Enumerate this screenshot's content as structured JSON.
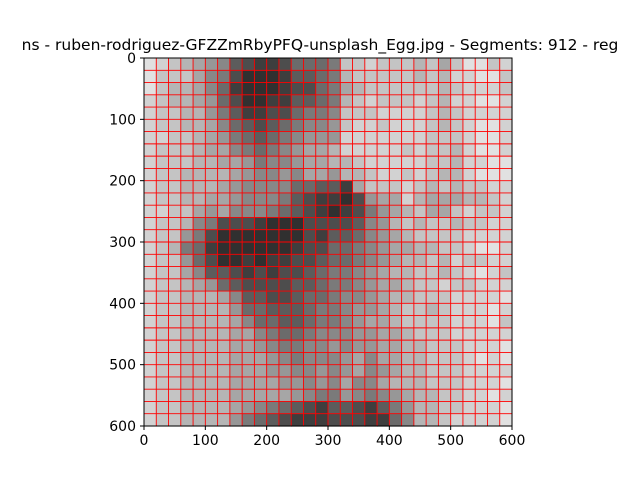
{
  "figure": {
    "title": "ns - ruben-rodriguez-GFZZmRbyPFQ-unsplash_Egg.jpg - Segments: 912 - reg"
  },
  "chart_data": {
    "type": "heatmap",
    "title": "ns - ruben-rodriguez-GFZZmRbyPFQ-unsplash_Egg.jpg - Segments: 912 - reg",
    "xlabel": "",
    "ylabel": "",
    "xlim": [
      0,
      600
    ],
    "ylim": [
      600,
      0
    ],
    "y_axis_inverted": true,
    "x_ticks": [
      0,
      100,
      200,
      300,
      400,
      500,
      600
    ],
    "y_ticks": [
      0,
      100,
      200,
      300,
      400,
      500,
      600
    ],
    "grid": false,
    "colormap": "gray",
    "grid_lines_color": "#ff0000",
    "cols": 30,
    "rows": 30,
    "cells": [
      "edcba98543346667ccdcccbcaceecd",
      "eccca87422235567bcccccbcbddeec",
      "ecbba86322234467abccccccbcdddc",
      "dcbba96422335567bcdcccdcbddeed",
      "dccbb97533446778cccddddcbcdddd",
      "dccbba8654567889cddcdddcbcdeed",
      "ddccba9765678999dddddddcccdeed",
      "dcccbaa876789aabdddddcdccbdeed",
      "dcccbbaa97889aabbcdddddccbddee",
      "dccbbbba98898aa9bbcddcdcbbdeee",
      "dccbbba9888866553acccdcbcbccdd",
      "dccbbaa988875433249aadbaaabbcd",
      "ddcca9a8887654323479abcaacdccd",
      "dccb8744432224444589bcbccbccdd",
      "dcc97422222224355689abccccdddd",
      "dcb76322222234466789aabbccdeed",
      "dcc96422323344566789abbcbdccdd",
      "dcca855434344567789abbccbcdedc",
      "dccba96544445567789aabccdccddd",
      "dccbbba855445667889abbcccdddde",
      "dccbbbb966555677899abccbcddded",
      "dccbbbba8665567789aabccccdddec",
      "dccbbbbaa8766788899aabcccddddd",
      "dccbbbbaa9877889899aabbcccddde",
      "dccbbbbaaa9878889a8aabbcccdede",
      "dccbbbbaaa9988989a89abbcccdddd",
      "dccbbbbaaaa99898a88abbbcccddde",
      "dccbbbbaaaaa987798789abbccdded",
      "dccbbbba98765435543579bbccddde",
      "dccbbbb976543334443368bbcdddde"
    ]
  }
}
